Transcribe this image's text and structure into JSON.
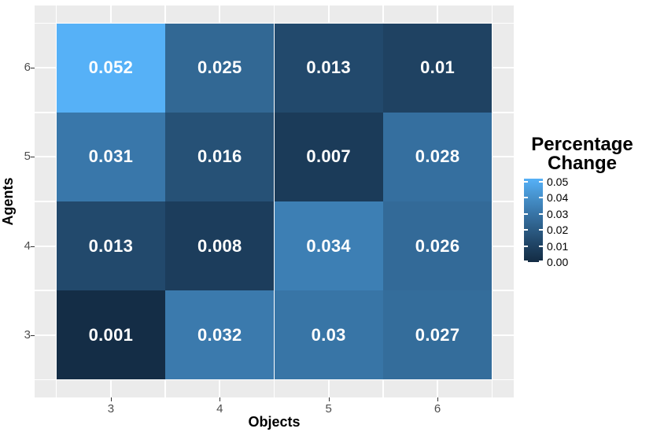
{
  "colors": {
    "background": "#FFFFFF",
    "panel_background": "#EBEBEB",
    "gridline": "#FFFFFF",
    "axis_text": "#4D4D4D",
    "axis_title": "#000000",
    "tick_mark": "#333333",
    "cell_label": "#FFFFFF",
    "fill_low": "#132B43",
    "fill_high": "#56B1F7"
  },
  "chart_data": {
    "type": "heatmap",
    "xlabel": "Objects",
    "ylabel": "Agents",
    "x_categories": [
      "3",
      "4",
      "5",
      "6"
    ],
    "y_categories_top_to_bottom": [
      "6",
      "5",
      "4",
      "3"
    ],
    "grid": "on",
    "rows_top_to_bottom": [
      {
        "agent": "6",
        "values": [
          0.052,
          0.025,
          0.013,
          0.01
        ],
        "labels": [
          "0.052",
          "0.025",
          "0.013",
          "0.01"
        ]
      },
      {
        "agent": "5",
        "values": [
          0.031,
          0.016,
          0.007,
          0.028
        ],
        "labels": [
          "0.031",
          "0.016",
          "0.007",
          "0.028"
        ]
      },
      {
        "agent": "4",
        "values": [
          0.013,
          0.008,
          0.034,
          0.026
        ],
        "labels": [
          "0.013",
          "0.008",
          "0.034",
          "0.026"
        ]
      },
      {
        "agent": "3",
        "values": [
          0.001,
          0.032,
          0.03,
          0.027
        ],
        "labels": [
          "0.001",
          "0.032",
          "0.03",
          "0.027"
        ]
      }
    ],
    "fill_scale": {
      "low": "#132B43",
      "high": "#56B1F7",
      "limits": [
        0,
        0.052
      ]
    },
    "legend": {
      "position": "right",
      "title_lines": [
        "Percentage",
        "Change"
      ],
      "tick_labels": [
        "0.05",
        "0.04",
        "0.03",
        "0.02",
        "0.01",
        "0.00"
      ],
      "tick_values": [
        0.05,
        0.04,
        0.03,
        0.02,
        0.01,
        0.0
      ]
    }
  }
}
